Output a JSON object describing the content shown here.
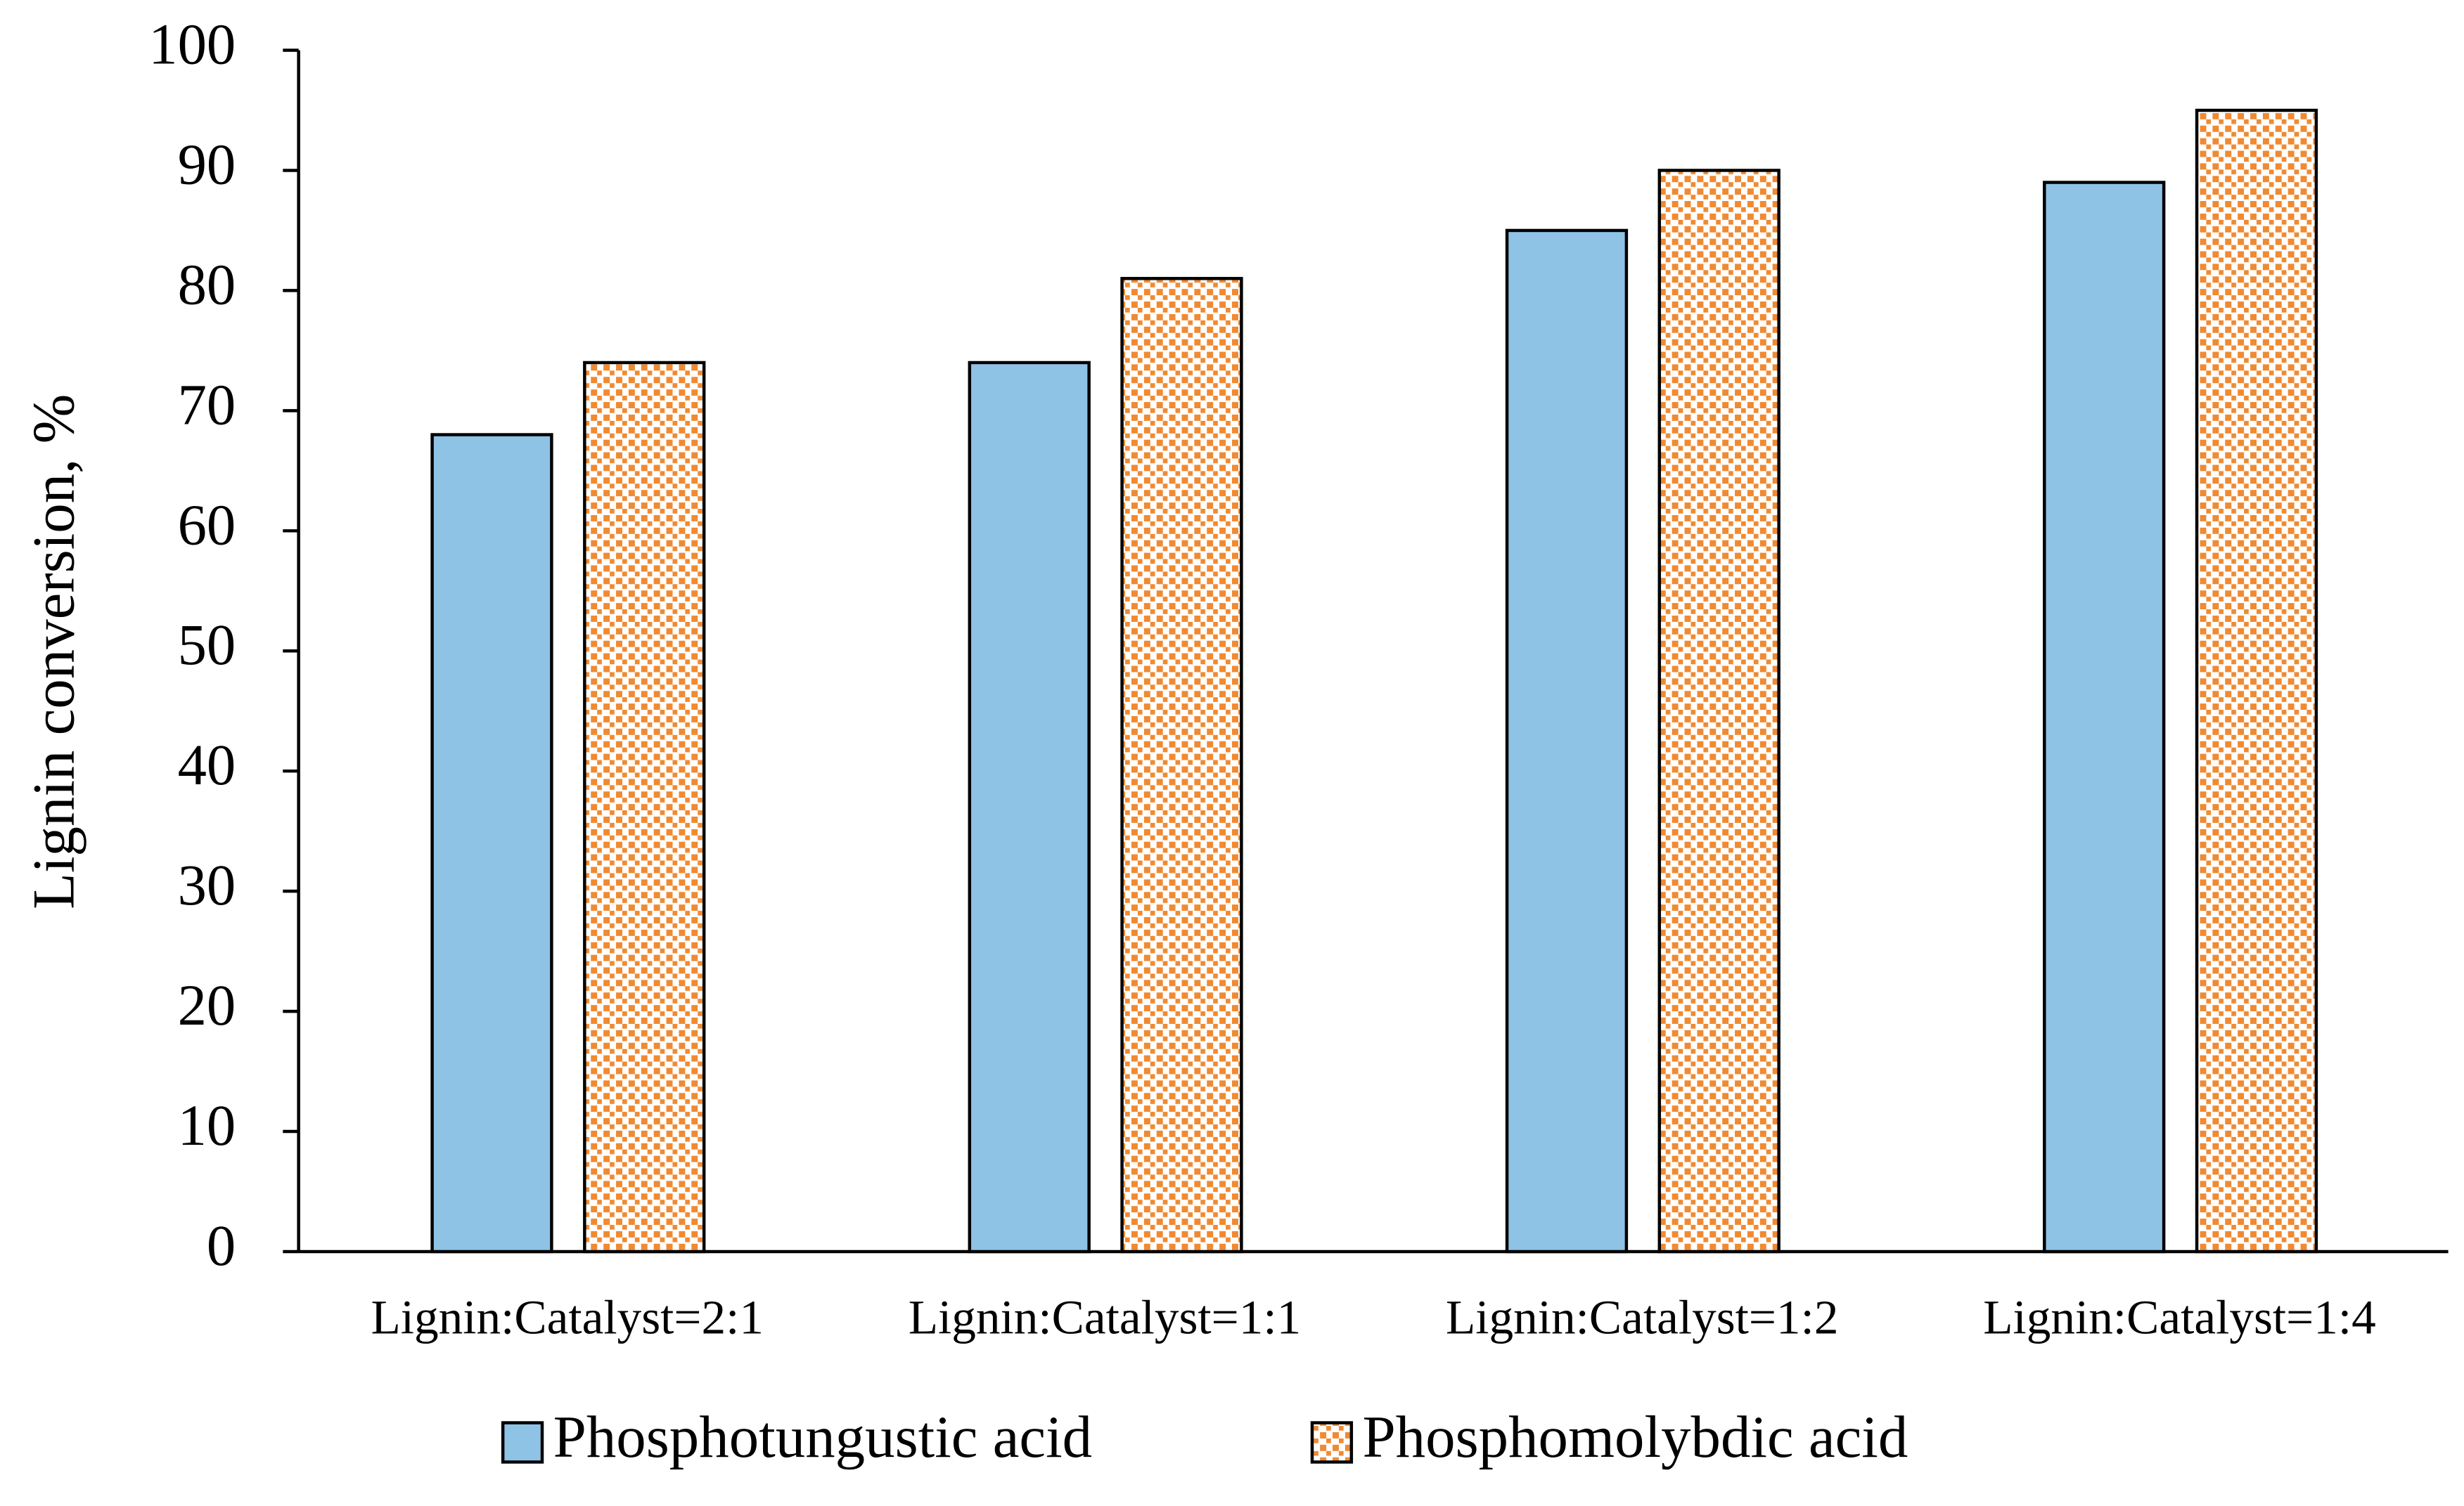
{
  "chart_data": {
    "type": "bar",
    "y_label": "Lignin conversion, %",
    "categories": [
      "Lignin:Catalyst=2:1",
      "Lignin:Catalyst=1:1",
      "Lignin:Catalyst=1:2",
      "Lignin:Catalyst=1:4"
    ],
    "series": [
      {
        "name": "Phosphotungustic acid",
        "color": "#8ec3e6",
        "values": [
          68,
          74,
          85,
          89
        ]
      },
      {
        "name": "Phosphomolybdic acid",
        "color": "#f08a32",
        "pattern": "dots",
        "values": [
          74,
          81,
          90,
          95
        ]
      }
    ],
    "ylim": [
      0,
      100
    ],
    "yticks": [
      0,
      10,
      20,
      30,
      40,
      50,
      60,
      70,
      80,
      90,
      100
    ],
    "grid": false,
    "legend": "bottom"
  }
}
